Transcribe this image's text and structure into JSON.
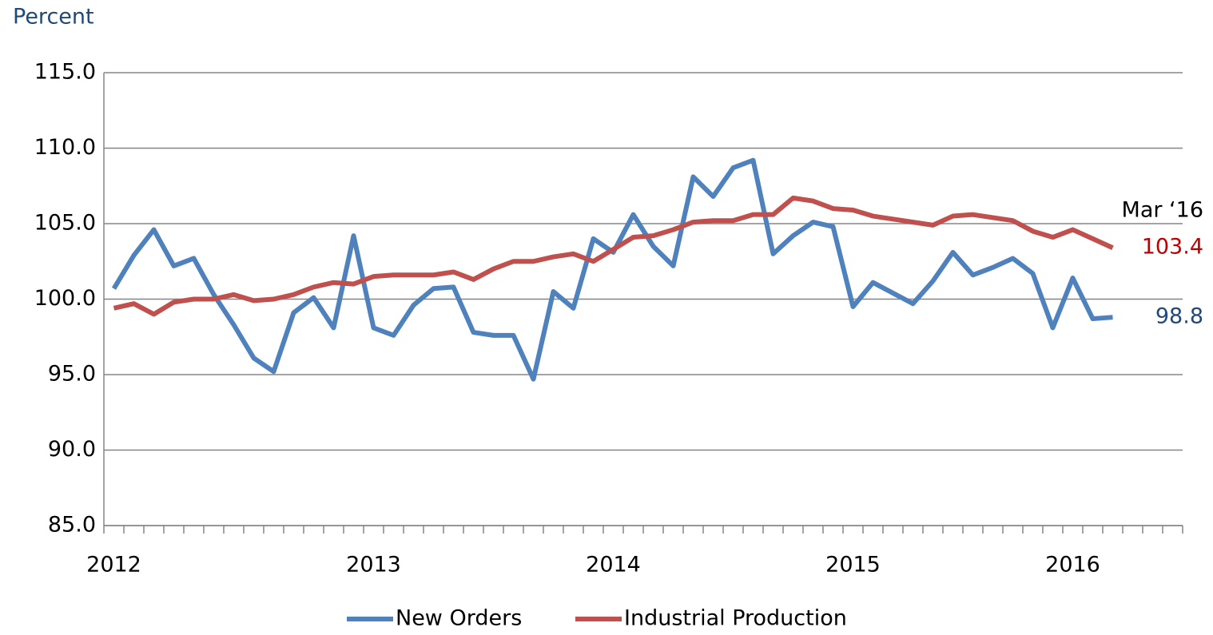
{
  "chart_data": {
    "type": "line",
    "y_axis_label": "Percent",
    "annotation": "Mar ‘16",
    "categories": [
      "2012",
      null,
      null,
      null,
      null,
      null,
      null,
      null,
      null,
      null,
      null,
      null,
      null,
      "2013",
      null,
      null,
      null,
      null,
      null,
      null,
      null,
      null,
      null,
      null,
      null,
      "2014",
      null,
      null,
      null,
      null,
      null,
      null,
      null,
      null,
      null,
      null,
      null,
      "2015",
      null,
      null,
      null,
      null,
      null,
      null,
      null,
      null,
      null,
      null,
      "2016",
      null,
      null,
      null,
      null,
      null
    ],
    "series": [
      {
        "name": "New Orders",
        "color": "#4f81bd",
        "values": [
          100.7,
          102.9,
          104.6,
          102.2,
          102.7,
          100.3,
          98.3,
          96.1,
          95.2,
          99.1,
          100.1,
          98.1,
          104.2,
          98.1,
          97.6,
          99.6,
          100.7,
          100.8,
          97.8,
          97.6,
          97.6,
          94.7,
          100.5,
          99.4,
          104.0,
          103.1,
          105.6,
          103.5,
          102.2,
          108.1,
          106.8,
          108.7,
          109.2,
          103.0,
          104.2,
          105.1,
          104.8,
          99.5,
          101.1,
          100.4,
          99.7,
          101.2,
          103.1,
          101.6,
          102.1,
          102.7,
          101.7,
          98.1,
          101.4,
          98.7,
          98.8,
          null,
          null,
          null
        ]
      },
      {
        "name": "Industrial Production",
        "color": "#c0504d",
        "values": [
          99.4,
          99.7,
          99.0,
          99.8,
          100.0,
          100.0,
          100.3,
          99.9,
          100.0,
          100.3,
          100.8,
          101.1,
          101.0,
          101.5,
          101.6,
          101.6,
          101.6,
          101.8,
          101.3,
          102.0,
          102.5,
          102.5,
          102.8,
          103.0,
          102.5,
          103.3,
          104.1,
          104.2,
          104.6,
          105.1,
          105.2,
          105.2,
          105.6,
          105.6,
          106.7,
          106.5,
          106.0,
          105.9,
          105.5,
          105.3,
          105.1,
          104.9,
          105.5,
          105.6,
          105.4,
          105.2,
          104.5,
          104.1,
          104.6,
          104.0,
          103.4,
          null,
          null,
          null
        ]
      }
    ],
    "ylim": [
      85,
      115
    ],
    "yticks": [
      {
        "value": 85,
        "label": "85.0"
      },
      {
        "value": 90,
        "label": "90.0"
      },
      {
        "value": 95,
        "label": "95.0"
      },
      {
        "value": 100,
        "label": "100.0"
      },
      {
        "value": 105,
        "label": "105.0"
      },
      {
        "value": 110,
        "label": "110.0"
      },
      {
        "value": 115,
        "label": "115.0"
      }
    ],
    "grid": true,
    "legend": "bottom"
  }
}
